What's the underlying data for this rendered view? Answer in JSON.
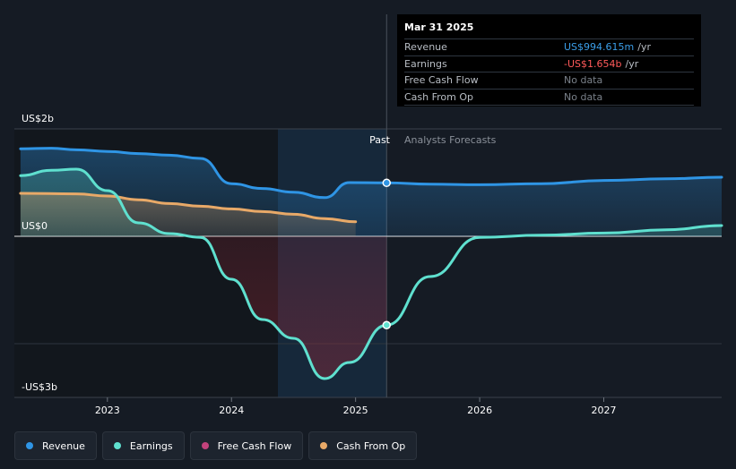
{
  "chart_data": {
    "type": "area",
    "y_axis_labels": {
      "top": "US$2b",
      "zero": "US$0",
      "bottom": "-US$3b"
    },
    "ylim": [
      -3,
      2
    ],
    "xlim": [
      2022.25,
      2027.95
    ],
    "x_ticks": [
      "2023",
      "2024",
      "2025",
      "2026",
      "2027"
    ],
    "zones": {
      "past_label": "Past",
      "forecast_label": "Analysts Forecasts",
      "divider_x": 2025.25
    },
    "series": [
      {
        "name": "Revenue",
        "key": "revenue",
        "color": "#2f95e5",
        "x": [
          2022.3,
          2022.55,
          2022.75,
          2023.0,
          2023.25,
          2023.5,
          2023.75,
          2024.0,
          2024.25,
          2024.5,
          2024.75,
          2024.95,
          2025.25,
          2025.6,
          2026.0,
          2026.5,
          2027.0,
          2027.5,
          2027.95
        ],
        "values": [
          1.63,
          1.64,
          1.61,
          1.58,
          1.54,
          1.51,
          1.45,
          0.98,
          0.89,
          0.82,
          0.72,
          1.0,
          0.995,
          0.97,
          0.96,
          0.98,
          1.04,
          1.07,
          1.1
        ]
      },
      {
        "name": "Earnings",
        "key": "earnings",
        "color": "#5fe0cf",
        "x": [
          2022.3,
          2022.55,
          2022.75,
          2023.0,
          2023.25,
          2023.5,
          2023.75,
          2024.0,
          2024.25,
          2024.5,
          2024.75,
          2024.95,
          2025.25,
          2025.6,
          2026.0,
          2026.5,
          2027.0,
          2027.5,
          2027.95
        ],
        "values": [
          1.13,
          1.23,
          1.25,
          0.85,
          0.25,
          0.05,
          -0.02,
          -0.8,
          -1.55,
          -1.9,
          -2.65,
          -2.35,
          -1.654,
          -0.75,
          -0.02,
          0.02,
          0.06,
          0.12,
          0.2
        ]
      },
      {
        "name": "Free Cash Flow",
        "key": "fcf",
        "color": "#c2427c",
        "x": [],
        "values": []
      },
      {
        "name": "Cash From Op",
        "key": "cfo",
        "color": "#e8a968",
        "x": [
          2022.3,
          2022.75,
          2023.0,
          2023.25,
          2023.5,
          2023.75,
          2024.0,
          2024.25,
          2024.5,
          2024.75,
          2025.0
        ],
        "values": [
          0.8,
          0.79,
          0.75,
          0.68,
          0.61,
          0.56,
          0.51,
          0.46,
          0.41,
          0.33,
          0.27
        ]
      }
    ],
    "highlight": {
      "x": 2025.25,
      "revenue": 0.995,
      "earnings": -1.654
    }
  },
  "tooltip": {
    "date": "Mar 31 2025",
    "rows": [
      {
        "label": "Revenue",
        "value": "US$994.615m",
        "unit": "/yr"
      },
      {
        "label": "Earnings",
        "value": "-US$1.654b",
        "unit": "/yr"
      },
      {
        "label": "Free Cash Flow",
        "value": "No data",
        "unit": ""
      },
      {
        "label": "Cash From Op",
        "value": "No data",
        "unit": ""
      }
    ]
  },
  "legend": [
    {
      "label": "Revenue",
      "color": "#2f95e5"
    },
    {
      "label": "Earnings",
      "color": "#5fe0cf"
    },
    {
      "label": "Free Cash Flow",
      "color": "#c2427c"
    },
    {
      "label": "Cash From Op",
      "color": "#e8a968"
    }
  ]
}
